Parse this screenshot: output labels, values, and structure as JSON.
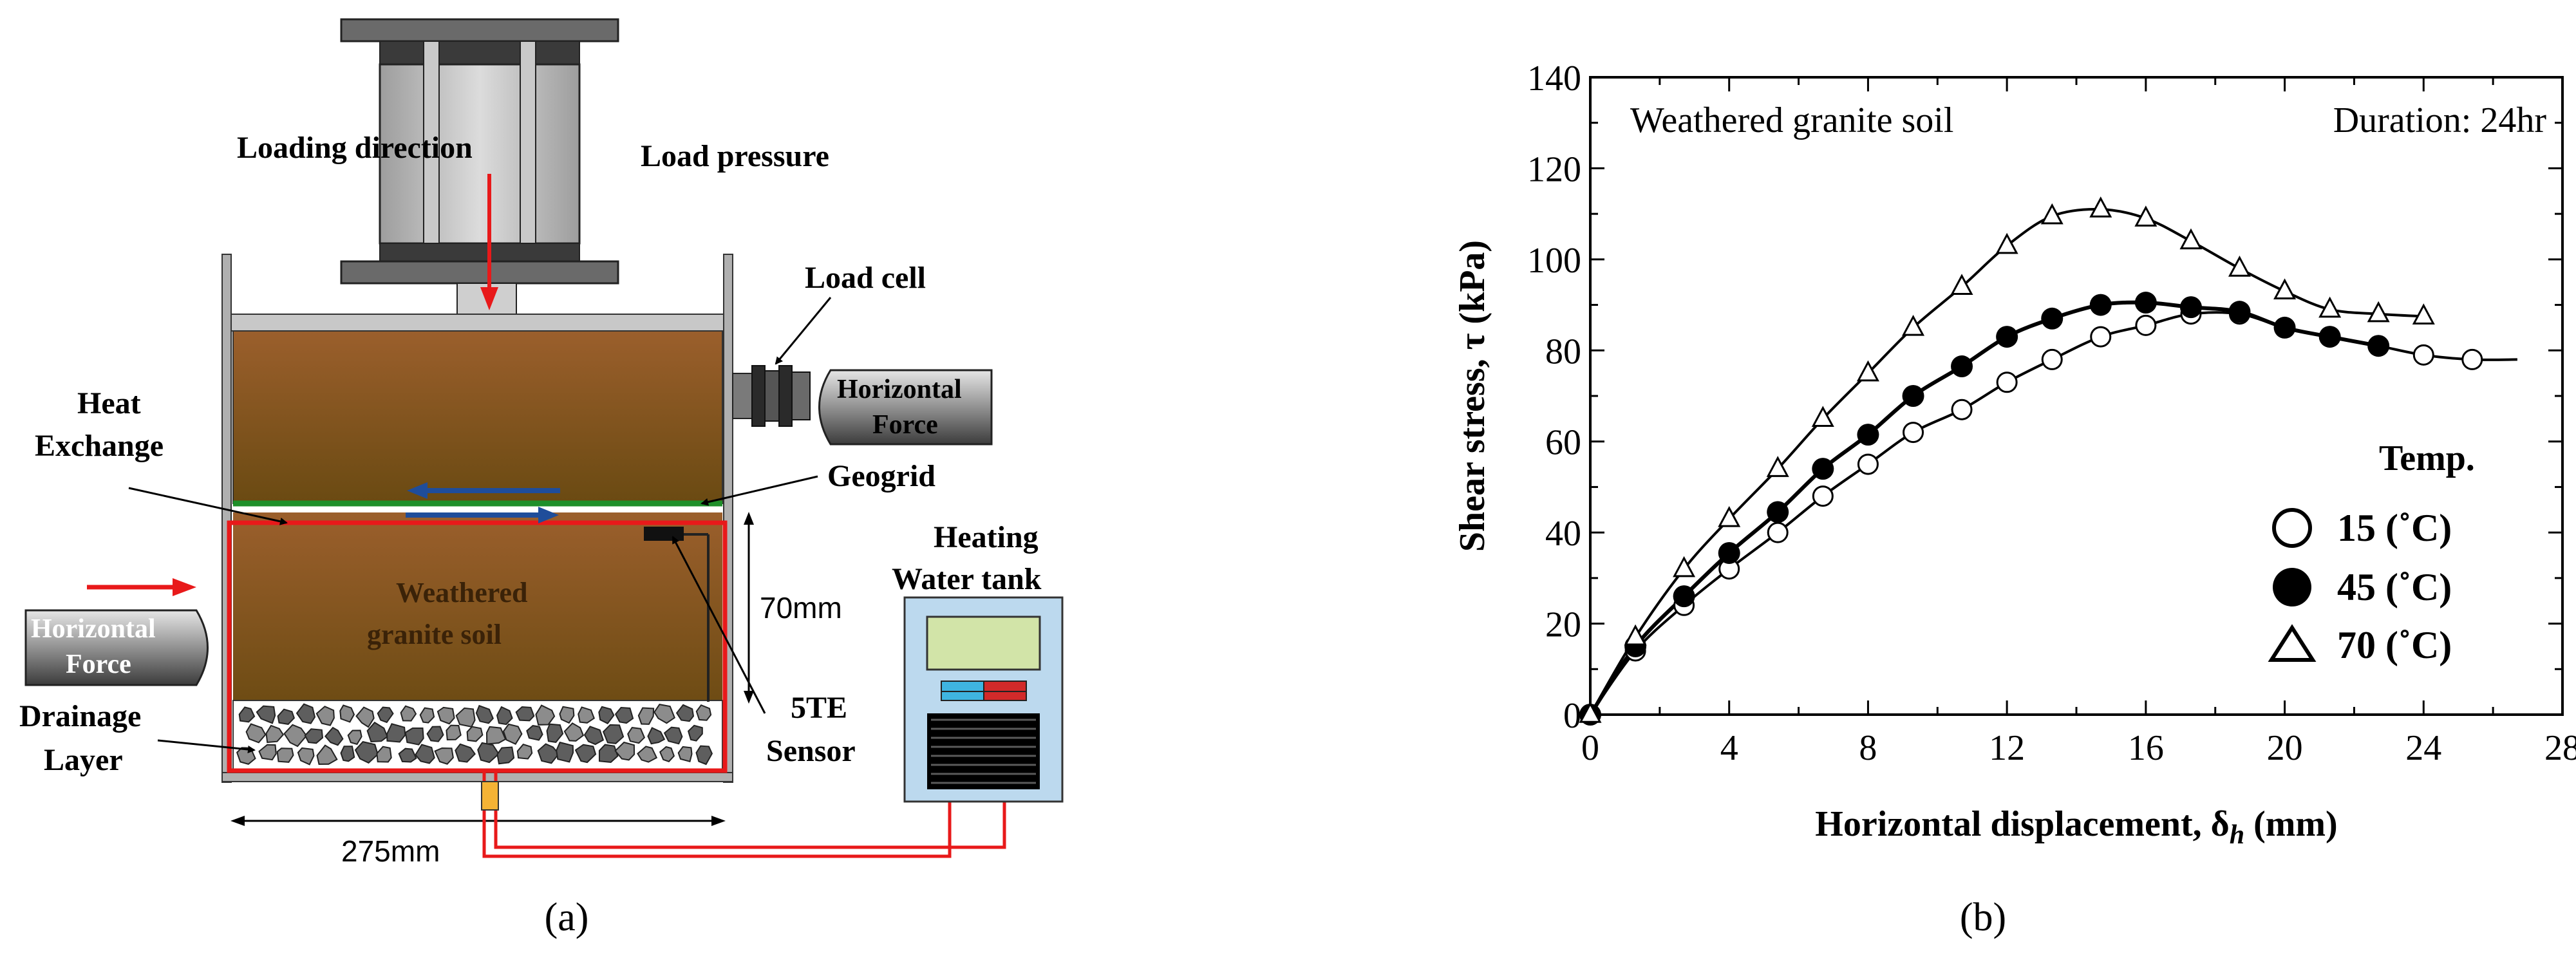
{
  "panel_a": {
    "caption": "(a)",
    "labels": {
      "loading_direction": "Loading direction",
      "load_pressure": "Load pressure",
      "load_cell": "Load cell",
      "horizontal_force_right": "Horizontal Force",
      "heat_exchange": "Heat Exchange",
      "geogrid": "Geogrid",
      "heating_water_tank": "Heating Water tank",
      "weathered_granite_soil": "Weathered granite soil",
      "dim_70mm": "70mm",
      "horizontal_force_left": "Horizontal Force",
      "drainage_layer": "Drainage Layer",
      "sensor": "5TE Sensor",
      "dim_275mm": "275mm"
    },
    "colors": {
      "soil_top": "#9b5f2c",
      "soil_bottom": "#6e4c14",
      "heat_line": "#e8191a",
      "geogrid_line": "#1f8f2a",
      "arrow_blue": "#1f4d9a",
      "tank_fill": "#bcd9ee",
      "screen_fill": "#d2e4a8"
    }
  },
  "panel_b": {
    "caption": "(b)",
    "annotation_left": "Weathered granite soil",
    "annotation_right": "Duration: 24hr",
    "legend_title": "Temp.",
    "legend": [
      "15 (˚C)",
      "45 (˚C)",
      "70 (˚C)"
    ]
  },
  "chart_data": {
    "type": "line",
    "xlabel": "Horizontal displacement, δh (mm)",
    "ylabel": "Shear stress, τ (kPa)",
    "xlim": [
      0,
      28
    ],
    "ylim": [
      0,
      140
    ],
    "xticks": [
      0,
      4,
      8,
      12,
      16,
      20,
      24,
      28
    ],
    "yticks": [
      0,
      20,
      40,
      60,
      80,
      100,
      120,
      140
    ],
    "grid": false,
    "legend_position": "bottom-right",
    "series": [
      {
        "name": "15 (˚C)",
        "marker": "open-circle",
        "x": [
          0,
          1.3,
          2.7,
          4.0,
          5.4,
          6.7,
          8.0,
          9.3,
          10.7,
          12.0,
          13.3,
          14.7,
          16.0,
          17.3,
          18.7,
          20.0,
          21.3,
          22.7,
          24.0,
          25.4
        ],
        "y": [
          0,
          14,
          24,
          32,
          40,
          48,
          55,
          62,
          67,
          73,
          78,
          83,
          85.5,
          88,
          88,
          85,
          83,
          81,
          79,
          78
        ],
        "curve_end": [
          26.7,
          78
        ]
      },
      {
        "name": "45 (˚C)",
        "marker": "filled-circle",
        "x": [
          0,
          1.3,
          2.7,
          4.0,
          5.4,
          6.7,
          8.0,
          9.3,
          10.7,
          12.0,
          13.3,
          14.7,
          16.0,
          17.3,
          18.7,
          20.0,
          21.3,
          22.7
        ],
        "y": [
          0,
          15,
          26,
          35.5,
          44.5,
          54,
          61.5,
          70,
          76.5,
          83,
          87,
          90,
          90.5,
          89.5,
          88.5,
          85,
          83,
          81
        ]
      },
      {
        "name": "70 (˚C)",
        "marker": "open-triangle",
        "x": [
          0,
          1.3,
          2.7,
          4.0,
          5.4,
          6.7,
          8.0,
          9.3,
          10.7,
          12.0,
          13.3,
          14.7,
          16.0,
          17.3,
          18.7,
          20.0,
          21.3,
          22.7,
          24.0
        ],
        "y": [
          0,
          17,
          32,
          43,
          54,
          65,
          75,
          85,
          94,
          103,
          109.5,
          111,
          109,
          104,
          98,
          93,
          89,
          88,
          87.5
        ]
      }
    ]
  }
}
